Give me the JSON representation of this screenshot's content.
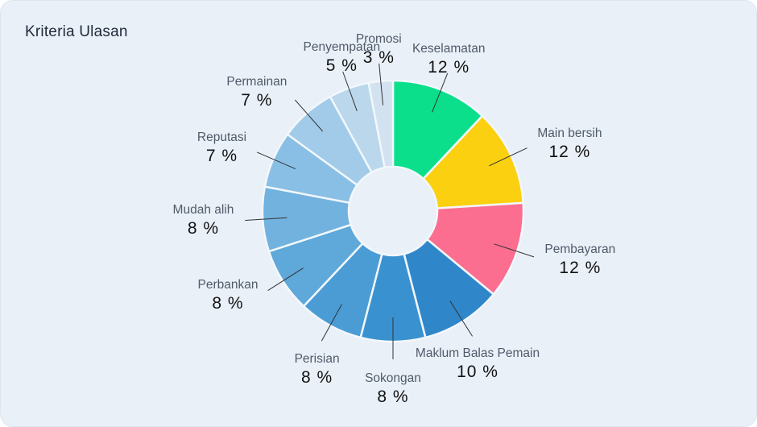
{
  "chart_data": {
    "type": "pie",
    "subtype": "donut",
    "title": "Kriteria Ulasan",
    "unit": "%",
    "start_angle_deg": 0,
    "direction": "clockwise",
    "legend_position": "outside-labels",
    "value_suffix": " %",
    "segments": [
      {
        "label": "Keselamatan",
        "value": 12,
        "color": "#0cdf8b"
      },
      {
        "label": "Main bersih",
        "value": 12,
        "color": "#fbd011"
      },
      {
        "label": "Pembayaran",
        "value": 12,
        "color": "#fb6e90"
      },
      {
        "label": "Maklum Balas Pemain",
        "value": 10,
        "color": "#2f87c9"
      },
      {
        "label": "Sokongan",
        "value": 8,
        "color": "#3a91cf"
      },
      {
        "label": "Perisian",
        "value": 8,
        "color": "#4b9cd5"
      },
      {
        "label": "Perbankan",
        "value": 8,
        "color": "#5ea8da"
      },
      {
        "label": "Mudah alih",
        "value": 8,
        "color": "#72b2df"
      },
      {
        "label": "Reputasi",
        "value": 7,
        "color": "#89bfe5"
      },
      {
        "label": "Permainan",
        "value": 7,
        "color": "#a1cbe9"
      },
      {
        "label": "Penyempatan",
        "value": 5,
        "color": "#bad7ec"
      },
      {
        "label": "Promosi",
        "value": 3,
        "color": "#d3e2f0"
      }
    ],
    "colors": {
      "background": "#e9f0f8",
      "slice_gap": "#f2f7fb",
      "label_text": "#505a68",
      "value_text": "#111111",
      "leader_line": "#333333",
      "title_text": "#212b39"
    }
  }
}
